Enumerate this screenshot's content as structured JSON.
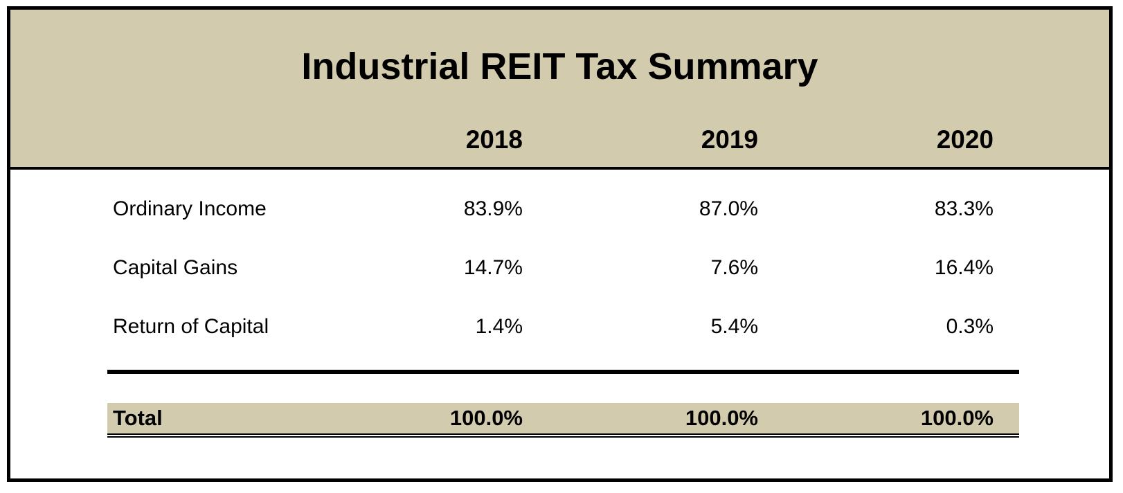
{
  "chart_data": {
    "type": "table",
    "title": "Industrial REIT Tax Summary",
    "columns": [
      "2018",
      "2019",
      "2020"
    ],
    "rows": [
      {
        "label": "Ordinary Income",
        "values": [
          "83.9%",
          "87.0%",
          "83.3%"
        ]
      },
      {
        "label": "Capital Gains",
        "values": [
          "14.7%",
          "7.6%",
          "16.4%"
        ]
      },
      {
        "label": "Return of Capital",
        "values": [
          "1.4%",
          "5.4%",
          "0.3%"
        ]
      }
    ],
    "total": {
      "label": "Total",
      "values": [
        "100.0%",
        "100.0%",
        "100.0%"
      ]
    }
  },
  "colors": {
    "header_background": "#d3cbad",
    "border": "#000000"
  }
}
